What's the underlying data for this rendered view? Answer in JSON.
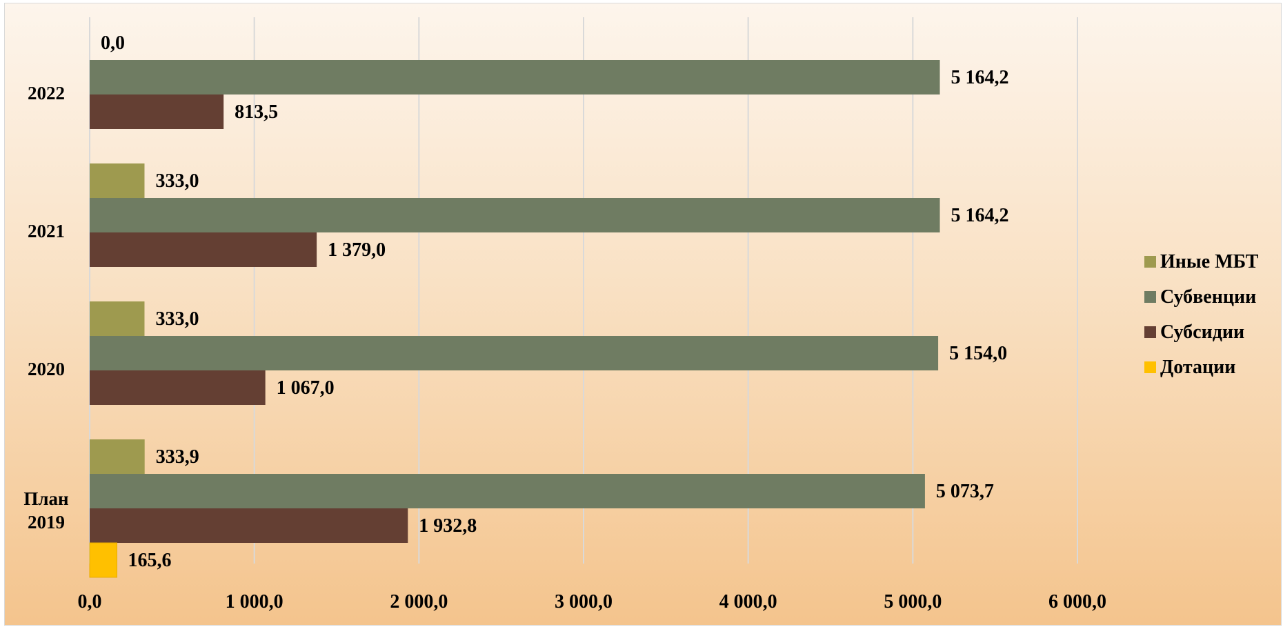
{
  "chart_data": {
    "type": "bar",
    "orientation": "horizontal",
    "categories": [
      [
        "2022"
      ],
      [
        "2021"
      ],
      [
        "2020"
      ],
      [
        "План",
        "2019"
      ]
    ],
    "series": [
      {
        "name": "Иные МБТ",
        "color": "#9e9a4f",
        "values": [
          0.0,
          333.0,
          333.0,
          333.9
        ],
        "labels": [
          "0,0",
          "333,0",
          "333,0",
          "333,9"
        ]
      },
      {
        "name": "Субвенции",
        "color": "#6f7c62",
        "values": [
          5164.2,
          5164.2,
          5154.0,
          5073.7
        ],
        "labels": [
          "5 164,2",
          "5 164,2",
          "5 154,0",
          "5 073,7"
        ]
      },
      {
        "name": "Субсидии",
        "color": "#643f33",
        "values": [
          813.5,
          1379.0,
          1067.0,
          1932.8
        ],
        "labels": [
          "813,5",
          "1 379,0",
          "1 067,0",
          "1 932,8"
        ]
      },
      {
        "name": "Дотации",
        "color": "#ffc000",
        "values": [
          null,
          null,
          null,
          165.6
        ],
        "labels": [
          null,
          null,
          null,
          "165,6"
        ]
      }
    ],
    "xlim": [
      0,
      6000
    ],
    "x_ticks": [
      {
        "value": 0,
        "label": "0,0"
      },
      {
        "value": 1000,
        "label": "1 000,0"
      },
      {
        "value": 2000,
        "label": "2 000,0"
      },
      {
        "value": 3000,
        "label": "3 000,0"
      },
      {
        "value": 4000,
        "label": "4 000,0"
      },
      {
        "value": 5000,
        "label": "5 000,0"
      },
      {
        "value": 6000,
        "label": "6 000,0"
      }
    ],
    "grid": true,
    "legend": {
      "placement": "right",
      "items": [
        {
          "name": "Иные МБТ",
          "color": "#9e9a4f"
        },
        {
          "name": "Субвенции",
          "color": "#6f7c62"
        },
        {
          "name": "Субсидии",
          "color": "#643f33"
        },
        {
          "name": "Дотации",
          "color": "#ffc000"
        }
      ]
    }
  }
}
